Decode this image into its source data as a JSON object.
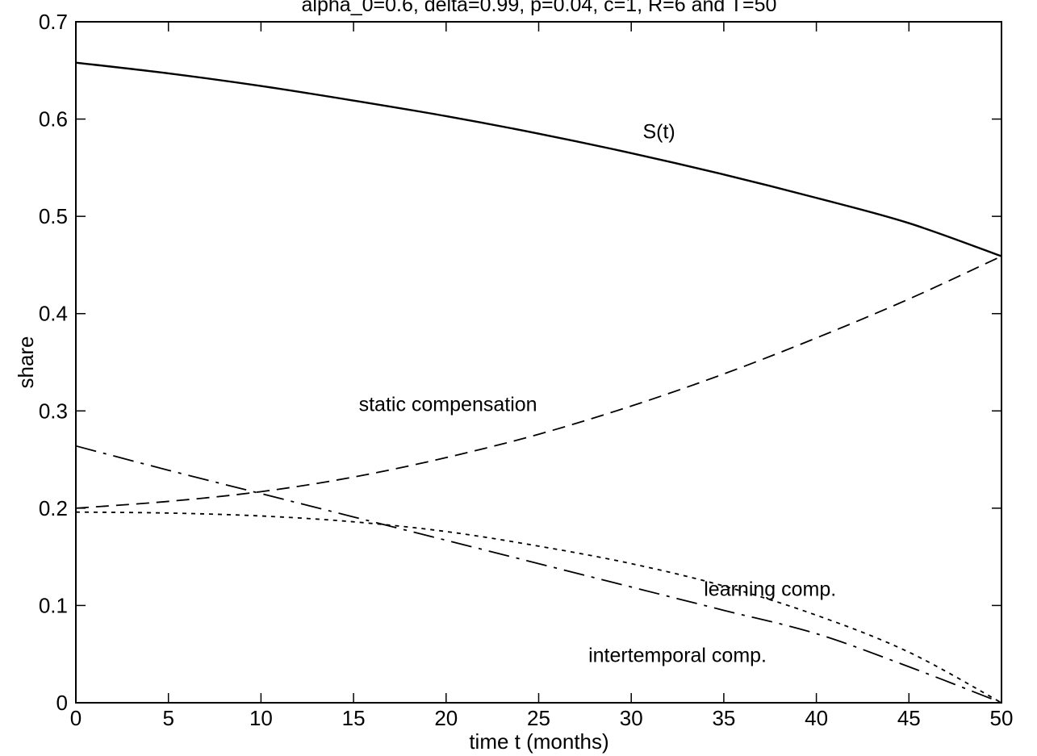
{
  "chart_data": {
    "type": "line",
    "title": "alpha_0=0.6, delta=0.99, p=0.04, c=1, R=6 and T=50",
    "xlabel": "time t (months)",
    "ylabel": "share",
    "xlim": [
      0,
      50
    ],
    "ylim": [
      0,
      0.7
    ],
    "x_ticks": [
      "0",
      "5",
      "10",
      "15",
      "20",
      "25",
      "30",
      "35",
      "40",
      "45",
      "50"
    ],
    "y_ticks": [
      "0",
      "0.1",
      "0.2",
      "0.3",
      "0.4",
      "0.5",
      "0.6",
      "0.7"
    ],
    "grid": false,
    "legend": "none",
    "x": [
      0,
      5,
      10,
      15,
      20,
      25,
      30,
      35,
      40,
      45,
      50
    ],
    "series": [
      {
        "style": "solid",
        "color": "#000000",
        "values": [
          0.658,
          0.647,
          0.634,
          0.619,
          0.603,
          0.585,
          0.565,
          0.543,
          0.519,
          0.493,
          0.459
        ]
      },
      {
        "style": "dashed",
        "color": "#000000",
        "values": [
          0.2,
          0.207,
          0.217,
          0.232,
          0.252,
          0.276,
          0.305,
          0.338,
          0.375,
          0.415,
          0.459
        ]
      },
      {
        "style": "dotted",
        "color": "#000000",
        "values": [
          0.196,
          0.195,
          0.192,
          0.186,
          0.176,
          0.161,
          0.143,
          0.12,
          0.09,
          0.052,
          0.0
        ]
      },
      {
        "style": "dash-dot",
        "color": "#000000",
        "values": [
          0.264,
          0.239,
          0.215,
          0.191,
          0.167,
          0.143,
          0.119,
          0.095,
          0.071,
          0.037,
          0.0
        ]
      }
    ],
    "annotations": [
      {
        "text": "S(t)",
        "x": 31.5,
        "y": 0.58
      },
      {
        "text": "static compensation",
        "x": 20.1,
        "y": 0.3
      },
      {
        "text": "learning comp.",
        "x": 37.5,
        "y": 0.11
      },
      {
        "text": "intertemporal comp.",
        "x": 32.5,
        "y": 0.042
      }
    ]
  }
}
